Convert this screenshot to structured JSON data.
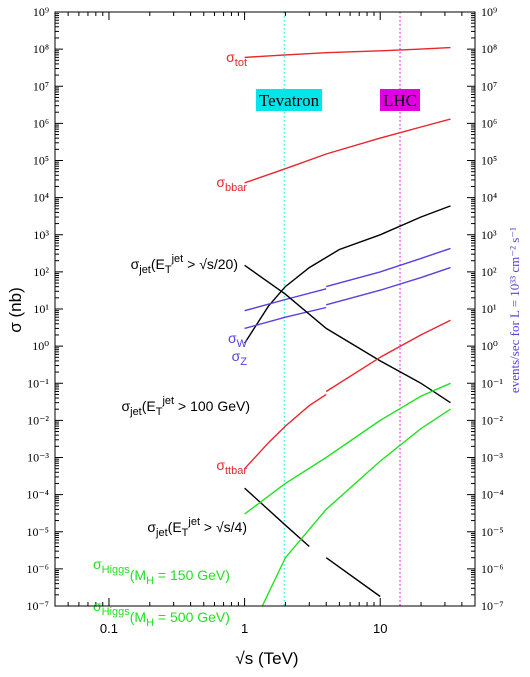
{
  "chart_data": {
    "type": "line",
    "x_scale": "log",
    "y_scale": "log",
    "xlabel": "√s (TeV)",
    "ylabel": "σ  (nb)",
    "right_ylabel": "events/sec for  L = 10³³ cm⁻² s⁻¹",
    "xlim": [
      0.04,
      50
    ],
    "ylim": [
      1e-07,
      1000000000.0
    ],
    "x_ticks": [
      {
        "value": 0.1,
        "label": "0.1"
      },
      {
        "value": 1,
        "label": "1"
      },
      {
        "value": 10,
        "label": "10"
      }
    ],
    "y_ticks": [
      {
        "exp": 9,
        "label": "10⁹"
      },
      {
        "exp": 8,
        "label": "10⁸"
      },
      {
        "exp": 7,
        "label": "10⁷"
      },
      {
        "exp": 6,
        "label": "10⁶"
      },
      {
        "exp": 5,
        "label": "10⁵"
      },
      {
        "exp": 4,
        "label": "10⁴"
      },
      {
        "exp": 3,
        "label": "10³"
      },
      {
        "exp": 2,
        "label": "10²"
      },
      {
        "exp": 1,
        "label": "10¹"
      },
      {
        "exp": 0,
        "label": "10⁰"
      },
      {
        "exp": -1,
        "label": "10⁻¹"
      },
      {
        "exp": -2,
        "label": "10⁻²"
      },
      {
        "exp": -3,
        "label": "10⁻³"
      },
      {
        "exp": -4,
        "label": "10⁻⁴"
      },
      {
        "exp": -5,
        "label": "10⁻⁵"
      },
      {
        "exp": -6,
        "label": "10⁻⁶"
      },
      {
        "exp": -7,
        "label": "10⁻⁷"
      }
    ],
    "markers": [
      {
        "x": 1.96,
        "label": "Tevatron",
        "color": "#00e5e5"
      },
      {
        "x": 14,
        "label": "LHC",
        "color": "#e000e0"
      }
    ],
    "series": [
      {
        "key": "tot",
        "color": "#e8262b",
        "segments": [
          [
            [
              1.0,
              60000000.0
            ],
            [
              2.0,
              70000000.0
            ],
            [
              4.0,
              80000000.0
            ],
            [
              10.0,
              90000000.0
            ],
            [
              20.0,
              100000000.0
            ],
            [
              33.0,
              110000000.0
            ]
          ]
        ]
      },
      {
        "key": "bbar",
        "color": "#e8262b",
        "segments": [
          [
            [
              1.0,
              25000.0
            ],
            [
              2.0,
              60000.0
            ],
            [
              4.0,
              150000.0
            ],
            [
              10.0,
              400000.0
            ],
            [
              20.0,
              800000.0
            ],
            [
              33.0,
              1300000.0
            ]
          ]
        ]
      },
      {
        "key": "jet20",
        "color": "#000000",
        "segments": [
          [
            [
              1.0,
              1.2
            ],
            [
              1.5,
              12
            ],
            [
              2.0,
              40
            ],
            [
              3.0,
              130
            ],
            [
              5.0,
              400
            ],
            [
              10.0,
              1000
            ],
            [
              20.0,
              3000
            ],
            [
              33.0,
              6000
            ]
          ]
        ]
      },
      {
        "key": "W",
        "color": "#5a3fe0",
        "segments": [
          [
            [
              1.0,
              9
            ],
            [
              2.0,
              18
            ],
            [
              4.0,
              35
            ]
          ],
          [
            [
              4.0,
              40
            ],
            [
              10.0,
              100
            ],
            [
              20.0,
              230
            ],
            [
              33.0,
              430
            ]
          ]
        ]
      },
      {
        "key": "Z",
        "color": "#5a3fe0",
        "segments": [
          [
            [
              1.0,
              3
            ],
            [
              2.0,
              6
            ],
            [
              4.0,
              11
            ]
          ],
          [
            [
              4.0,
              13
            ],
            [
              10.0,
              32
            ],
            [
              20.0,
              70
            ],
            [
              33.0,
              130
            ]
          ]
        ]
      },
      {
        "key": "jet100",
        "color": "#000000",
        "segments": [
          [
            [
              1.0,
              150
            ],
            [
              2.0,
              25
            ],
            [
              4.0,
              3
            ],
            [
              10.0,
              0.4
            ],
            [
              20.0,
              0.1
            ],
            [
              33.0,
              0.03
            ]
          ]
        ]
      },
      {
        "key": "ttbar",
        "color": "#e8262b",
        "segments": [
          [
            [
              1.0,
              0.0005
            ],
            [
              1.5,
              0.0025
            ],
            [
              2.0,
              0.007
            ],
            [
              3.0,
              0.025
            ],
            [
              4.0,
              0.05
            ]
          ],
          [
            [
              4.0,
              0.06
            ],
            [
              10.0,
              0.5
            ],
            [
              20.0,
              2
            ],
            [
              33.0,
              5
            ]
          ]
        ]
      },
      {
        "key": "jet4",
        "color": "#000000",
        "segments": [
          [
            [
              1.0,
              0.00015
            ],
            [
              2.0,
              1.5e-05
            ],
            [
              3.0,
              4e-06
            ]
          ],
          [
            [
              4.0,
              2e-06
            ],
            [
              10.0,
              1.8e-07
            ]
          ]
        ]
      },
      {
        "key": "higgs150",
        "color": "#22e022",
        "segments": [
          [
            [
              1.0,
              3e-05
            ],
            [
              2.0,
              0.0002
            ],
            [
              4.0,
              0.001
            ],
            [
              10.0,
              0.01
            ],
            [
              20.0,
              0.045
            ],
            [
              33.0,
              0.1
            ]
          ]
        ]
      },
      {
        "key": "higgs500",
        "color": "#22e022",
        "segments": [
          [
            [
              1.35,
              1e-07
            ],
            [
              2.0,
              2e-06
            ],
            [
              4.0,
              4e-05
            ],
            [
              10.0,
              0.0008
            ],
            [
              20.0,
              0.006
            ],
            [
              33.0,
              0.02
            ]
          ]
        ]
      }
    ],
    "annotations": [
      {
        "series": "tot",
        "color": "#e8262b",
        "main": "σ",
        "sub": "tot"
      },
      {
        "series": "bbar",
        "color": "#e8262b",
        "main": "σ",
        "sub": "bbar"
      },
      {
        "series": "jet20",
        "color": "#000000",
        "main": "σ",
        "sub": "jet",
        "rest": "(E",
        "sub2": "T",
        "sup2": "jet",
        "tail": " > √s/20)"
      },
      {
        "series": "W",
        "color": "#5a3fe0",
        "main": "σ",
        "sub": "W"
      },
      {
        "series": "Z",
        "color": "#5a3fe0",
        "main": "σ",
        "sub": "Z"
      },
      {
        "series": "jet100",
        "color": "#000000",
        "main": "σ",
        "sub": "jet",
        "rest": "(E",
        "sub2": "T",
        "sup2": "jet",
        "tail": " > 100 GeV)"
      },
      {
        "series": "ttbar",
        "color": "#e8262b",
        "main": "σ",
        "sub": "ttbar"
      },
      {
        "series": "jet4",
        "color": "#000000",
        "main": "σ",
        "sub": "jet",
        "rest": "(E",
        "sub2": "T",
        "sup2": "jet",
        "tail": " > √s/4)"
      },
      {
        "series": "higgs150",
        "color": "#22e022",
        "main": "σ",
        "sub": "Higgs",
        "tail": "(M",
        "sub3": "H",
        "tail2": " = 150 GeV)"
      },
      {
        "series": "higgs500",
        "color": "#22e022",
        "main": "σ",
        "sub": "Higgs",
        "tail": "(M",
        "sub3": "H",
        "tail2": " = 500 GeV)"
      }
    ]
  }
}
